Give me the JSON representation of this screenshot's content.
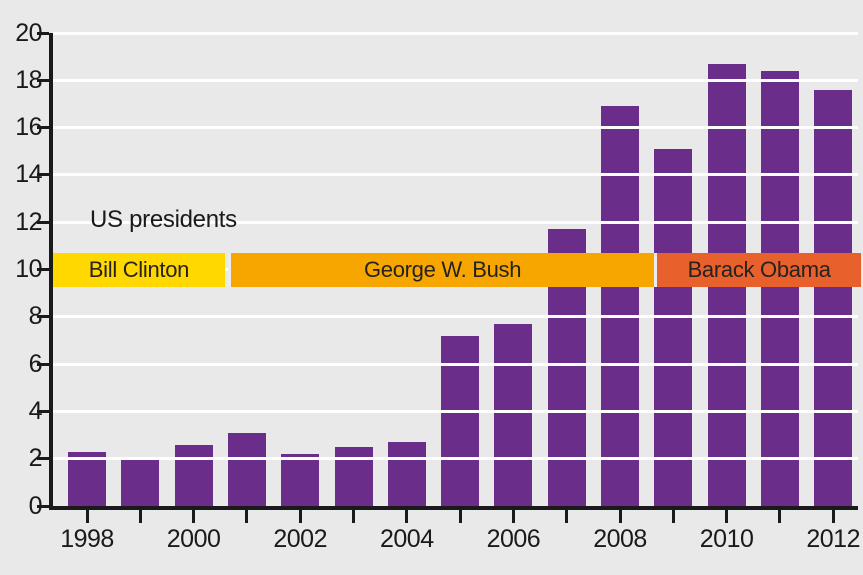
{
  "chart_data": {
    "type": "bar",
    "title": "",
    "annotation": "US presidents",
    "categories": [
      1998,
      1999,
      2000,
      2001,
      2002,
      2003,
      2004,
      2005,
      2006,
      2007,
      2008,
      2009,
      2010,
      2011,
      2012
    ],
    "values": [
      2.3,
      2.0,
      2.6,
      3.1,
      2.2,
      2.5,
      2.7,
      7.2,
      7.7,
      11.7,
      16.9,
      15.1,
      18.7,
      18.4,
      17.6
    ],
    "ylim": [
      0,
      20
    ],
    "ytick_step": 2,
    "ytick_labels": [
      "0",
      "2",
      "4",
      "6",
      "8",
      "10",
      "12",
      "14",
      "16",
      "18",
      "20"
    ],
    "xtick_labels": [
      "1998",
      "2000",
      "2002",
      "2004",
      "2006",
      "2008",
      "2010",
      "2012"
    ],
    "grid": "horizontal-white-over-bars",
    "legend_position": "none",
    "colors": {
      "background": "#e9e9e9",
      "bar": "#6a2d8a",
      "gridline": "#ffffff",
      "axis": "#1a1a1a",
      "text": "#1a1a1a",
      "band_separator": "#ececec"
    },
    "presidents_band": {
      "label": "US presidents",
      "center_value": 10,
      "segments": [
        {
          "name": "Bill Clinton",
          "color": "#ffd800",
          "start_year": 1998,
          "end_year": 2001
        },
        {
          "name": "George W. Bush",
          "color": "#f7a600",
          "start_year": 2001,
          "end_year": 2009
        },
        {
          "name": "Barack Obama",
          "color": "#e8612c",
          "start_year": 2009,
          "end_year": 2012
        }
      ]
    }
  }
}
